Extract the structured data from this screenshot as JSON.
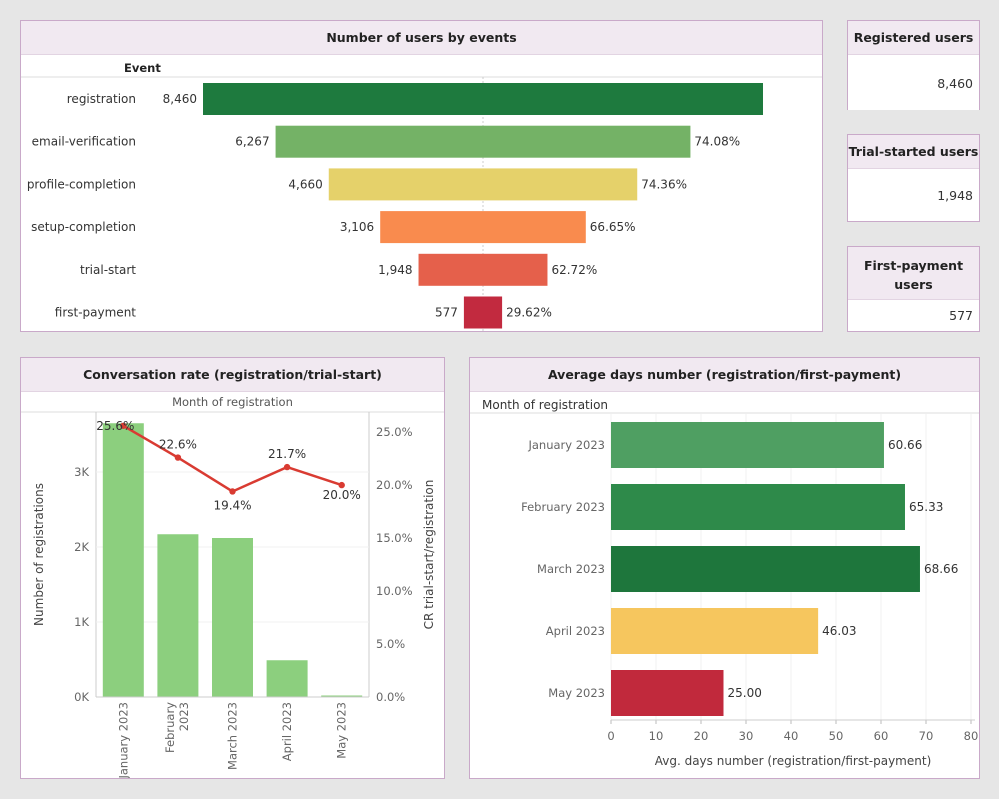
{
  "funnel": {
    "title": "Number of users by events",
    "column_header": "Event"
  },
  "kpis": [
    {
      "title": "Registered users",
      "value": "8,460"
    },
    {
      "title": "Trial-started users",
      "value": "1,948"
    },
    {
      "title": "First-payment users",
      "value": "577"
    }
  ],
  "cr_panel": {
    "title": "Conversation rate (registration/trial-start)",
    "subheader": "Month of registration"
  },
  "days_panel": {
    "title": "Average days number (registration/first-payment)"
  },
  "colors": {
    "funnel": [
      "#1e7a3e",
      "#74b266",
      "#e5d16a",
      "#f98b4e",
      "#e5604b",
      "#c22a3f"
    ],
    "cr_bars": "#8ccf7e",
    "cr_line": "#d93b32",
    "days": [
      "#4f9f62",
      "#2e8a4a",
      "#1e763c",
      "#f6c65e",
      "#c1293c"
    ]
  },
  "chart_data": [
    {
      "type": "bar",
      "subtype": "funnel",
      "title": "Number of users by events",
      "ylabel": "Event",
      "categories": [
        "registration",
        "email-verification",
        "profile-completion",
        "setup-completion",
        "trial-start",
        "first-payment"
      ],
      "values": [
        8460,
        6267,
        4660,
        3106,
        1948,
        577
      ],
      "value_labels": [
        "8,460",
        "6,267",
        "4,660",
        "3,106",
        "1,948",
        "577"
      ],
      "step_conversion_labels": [
        "",
        "74.08%",
        "74.36%",
        "66.65%",
        "62.72%",
        "29.62%"
      ]
    },
    {
      "type": "bar",
      "subtype": "bar+line dual axis",
      "title": "Conversation rate (registration/trial-start)",
      "xlabel": "Month of registration",
      "categories": [
        "January 2023",
        "February 2023",
        "March 2023",
        "April 2023",
        "May 2023"
      ],
      "series": [
        {
          "name": "Number of registrations",
          "type": "bar",
          "values": [
            3650,
            2170,
            2120,
            490,
            20
          ]
        },
        {
          "name": "CR trial-start/registration",
          "type": "line",
          "values": [
            25.6,
            22.6,
            19.4,
            21.7,
            20.0
          ],
          "labels": [
            "25.6%",
            "22.6%",
            "19.4%",
            "21.7%",
            "20.0%"
          ]
        }
      ],
      "ylabel": "Number of registrations",
      "ylim": [
        0,
        3800
      ],
      "yticks": [
        "0K",
        "1K",
        "2K",
        "3K"
      ],
      "ylabel_right": "CR trial-start/registration",
      "ylim_right": [
        0,
        26.9
      ],
      "yticks_right": [
        "0.0%",
        "5.0%",
        "10.0%",
        "15.0%",
        "20.0%",
        "25.0%"
      ]
    },
    {
      "type": "bar",
      "orientation": "horizontal",
      "title": "Average days number (registration/first-payment)",
      "ylabel": "Month of registration",
      "xlabel": "Avg. days number (registration/first-payment)",
      "categories": [
        "January 2023",
        "February 2023",
        "March 2023",
        "April 2023",
        "May 2023"
      ],
      "values": [
        60.66,
        65.33,
        68.66,
        46.03,
        25.0
      ],
      "value_labels": [
        "60.66",
        "65.33",
        "68.66",
        "46.03",
        "25.00"
      ],
      "xlim": [
        0,
        80
      ],
      "xticks": [
        "0",
        "10",
        "20",
        "30",
        "40",
        "50",
        "60",
        "70",
        "80"
      ]
    }
  ]
}
